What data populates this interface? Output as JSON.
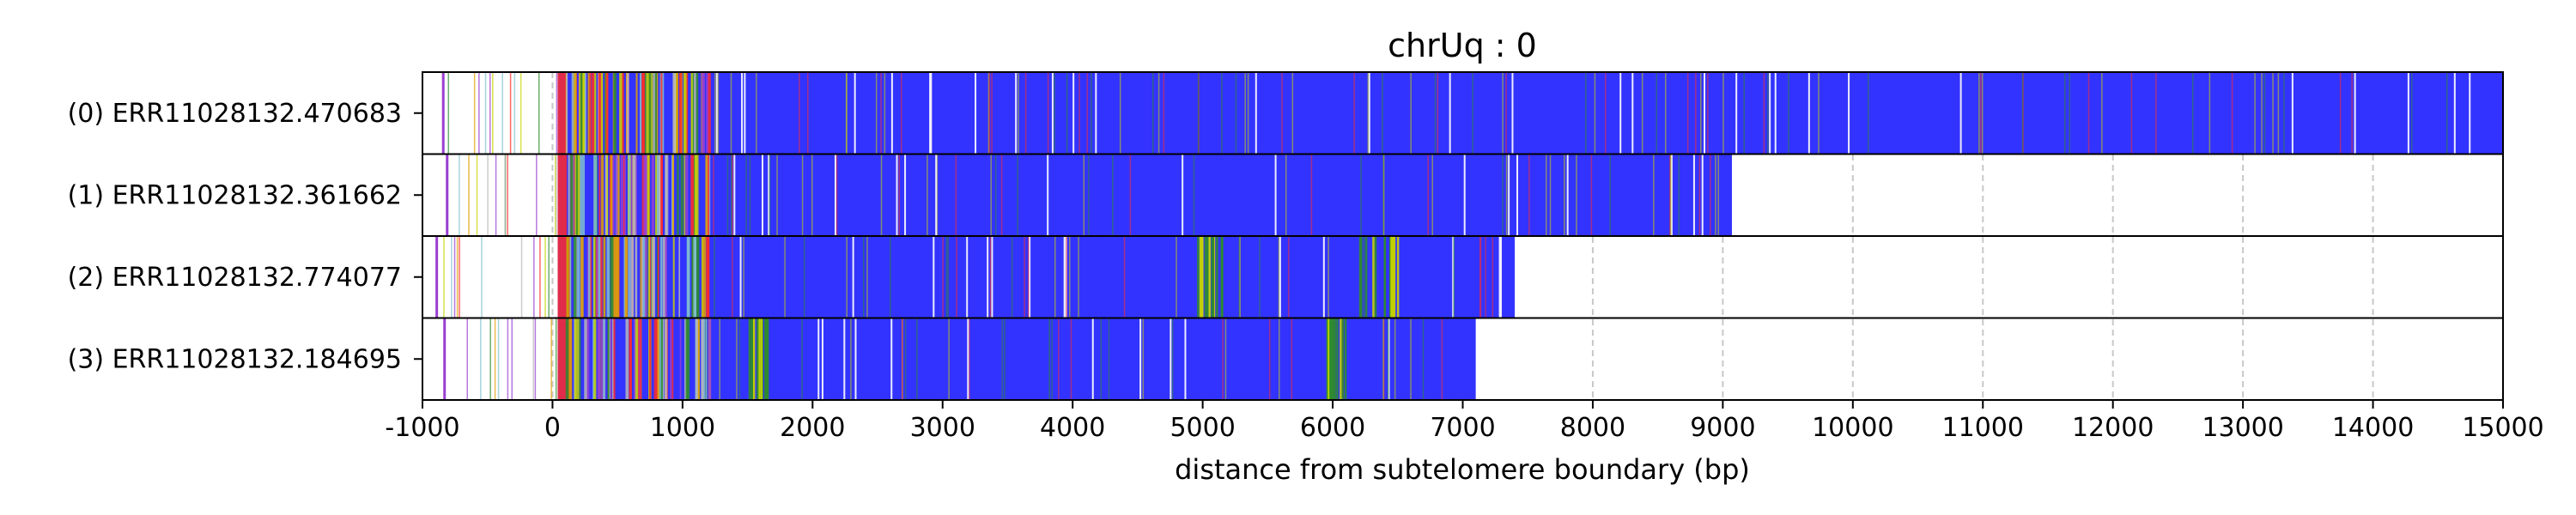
{
  "chart_data": {
    "type": "heatmap",
    "title": "chrUq : 0",
    "xlabel": "distance from subtelomere boundary (bp)",
    "xlim": [
      -1000,
      15000
    ],
    "xticks": [
      -1000,
      0,
      1000,
      2000,
      3000,
      4000,
      5000,
      6000,
      7000,
      8000,
      9000,
      10000,
      11000,
      12000,
      13000,
      14000,
      15000
    ],
    "grid": "vertical dashed",
    "legend": "none",
    "colors": {
      "repeat": "#3333ff",
      "accents": [
        "#2e8b2e",
        "#c8d400",
        "#ff2a2a",
        "#9a3fd0",
        "#80c0d0",
        "#b8b8b8",
        "#e0a000"
      ]
    },
    "reads": [
      {
        "label": "(0) ERR11028132.470683",
        "start": -850,
        "end": 15000
      },
      {
        "label": "(1) ERR11028132.361662",
        "start": -820,
        "end": 9070
      },
      {
        "label": "(2) ERR11028132.774077",
        "start": -900,
        "end": 7400
      },
      {
        "label": "(3) ERR11028132.184695",
        "start": -840,
        "end": 7100
      }
    ]
  }
}
